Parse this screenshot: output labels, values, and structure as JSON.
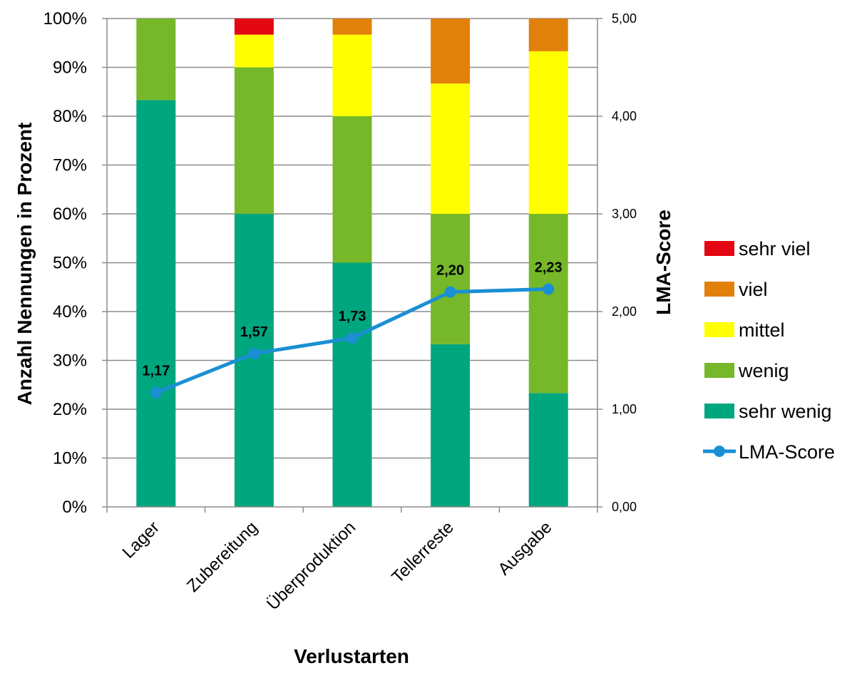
{
  "chart_data": {
    "type": "bar",
    "stacked": true,
    "percent_stacked": true,
    "categories": [
      "Lager",
      "Zubereitung",
      "Überproduktion",
      "Tellerreste",
      "Ausgabe"
    ],
    "series": [
      {
        "name": "sehr wenig",
        "color": "#00a67e",
        "values": [
          83.3,
          60.0,
          50.0,
          33.3,
          23.3
        ]
      },
      {
        "name": "wenig",
        "color": "#76b82a",
        "values": [
          16.7,
          30.0,
          30.0,
          26.7,
          36.7
        ]
      },
      {
        "name": "mittel",
        "color": "#ffff00",
        "values": [
          0.0,
          6.7,
          16.7,
          26.7,
          33.3
        ]
      },
      {
        "name": "viel",
        "color": "#e2810a",
        "values": [
          0.0,
          0.0,
          3.3,
          13.3,
          6.7
        ]
      },
      {
        "name": "sehr viel",
        "color": "#e30613",
        "values": [
          0.0,
          3.3,
          0.0,
          0.0,
          0.0
        ]
      }
    ],
    "line": {
      "name": "LMA-Score",
      "color": "#1a8fd4",
      "values": [
        1.17,
        1.57,
        1.73,
        2.2,
        2.23
      ],
      "labels": [
        "1,17",
        "1,57",
        "1,73",
        "2,20",
        "2,23"
      ]
    },
    "xlabel": "Verlustarten",
    "ylabel": "Anzahl Nennungen in Prozent",
    "y2label": "LMA-Score",
    "ylim": [
      0,
      100
    ],
    "y2lim": [
      0,
      5
    ],
    "yticks": [
      "0%",
      "10%",
      "20%",
      "30%",
      "40%",
      "50%",
      "60%",
      "70%",
      "80%",
      "90%",
      "100%"
    ],
    "y2ticks": [
      "0,00",
      "1,00",
      "2,00",
      "3,00",
      "4,00",
      "5,00"
    ],
    "grid": true,
    "legend": {
      "position": "right",
      "entries": [
        "sehr viel",
        "viel",
        "mittel",
        "wenig",
        "sehr wenig",
        "LMA-Score"
      ]
    }
  }
}
